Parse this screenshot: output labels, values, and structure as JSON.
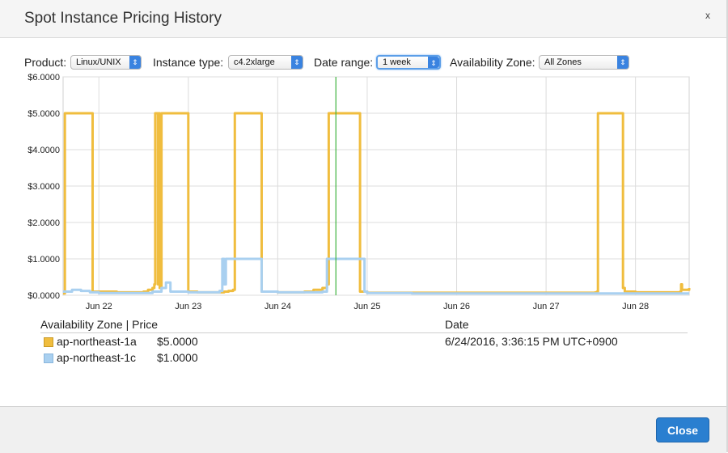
{
  "dialog": {
    "title": "Spot Instance Pricing History",
    "close_x": "x",
    "close_button": "Close"
  },
  "controls": {
    "product_label": "Product:",
    "product_value": "Linux/UNIX",
    "instance_type_label": "Instance type:",
    "instance_type_value": "c4.2xlarge",
    "date_range_label": "Date range:",
    "date_range_value": "1 week",
    "az_label": "Availability Zone:",
    "az_value": "All Zones",
    "arrow_glyph": "⇕"
  },
  "chart_data": {
    "type": "line",
    "x_ticks": [
      "Jun 22",
      "Jun 23",
      "Jun 24",
      "Jun 25",
      "Jun 26",
      "Jun 27",
      "Jun 28"
    ],
    "y_ticks": [
      "$0.0000",
      "$1.0000",
      "$2.0000",
      "$3.0000",
      "$4.0000",
      "$5.0000",
      "$6.0000"
    ],
    "ylim": [
      0,
      6
    ],
    "xlim": [
      21.6,
      28.6
    ],
    "grid": true,
    "cursor_x": 24.65,
    "cursor_color": "#3db33d",
    "series": [
      {
        "name": "ap-northeast-1a",
        "color": "#f0bd3e",
        "x": [
          21.6,
          21.62,
          21.63,
          21.9,
          21.91,
          21.93,
          22.2,
          22.4,
          22.5,
          22.55,
          22.6,
          22.62,
          22.63,
          22.64,
          22.66,
          22.67,
          22.68,
          22.7,
          22.71,
          22.72,
          22.99,
          23.0,
          23.1,
          23.3,
          23.4,
          23.45,
          23.5,
          23.52,
          23.8,
          23.82,
          24.0,
          24.1,
          24.3,
          24.4,
          24.5,
          24.55,
          24.57,
          24.9,
          24.92,
          25.0,
          25.5,
          26.0,
          26.5,
          27.0,
          27.4,
          27.55,
          27.57,
          27.58,
          27.85,
          27.86,
          27.88,
          28.0,
          28.2,
          28.4,
          28.5,
          28.51,
          28.52,
          28.6
        ],
        "y": [
          0.05,
          5.0,
          5.0,
          5.0,
          5.0,
          0.1,
          0.08,
          0.08,
          0.1,
          0.15,
          0.2,
          0.3,
          5.0,
          5.0,
          0.3,
          5.0,
          0.2,
          5.0,
          5.0,
          5.0,
          5.0,
          0.1,
          0.08,
          0.08,
          0.1,
          0.12,
          0.15,
          5.0,
          5.0,
          0.1,
          0.08,
          0.08,
          0.1,
          0.15,
          0.2,
          0.3,
          5.0,
          5.0,
          0.1,
          0.07,
          0.07,
          0.07,
          0.07,
          0.07,
          0.07,
          0.08,
          0.1,
          5.0,
          5.0,
          0.2,
          0.1,
          0.08,
          0.08,
          0.08,
          0.1,
          0.3,
          0.15,
          0.2
        ]
      },
      {
        "name": "ap-northeast-1c",
        "color": "#a9d0f0",
        "x": [
          21.6,
          21.7,
          21.8,
          21.9,
          22.0,
          22.2,
          22.4,
          22.6,
          22.7,
          22.75,
          22.8,
          23.0,
          23.2,
          23.35,
          23.38,
          23.4,
          23.42,
          23.44,
          23.8,
          23.82,
          24.0,
          24.2,
          24.5,
          24.55,
          24.95,
          24.97,
          25.0,
          25.5,
          26.0,
          26.5,
          27.0,
          27.5,
          28.0,
          28.5,
          28.6
        ],
        "y": [
          0.1,
          0.15,
          0.12,
          0.08,
          0.06,
          0.06,
          0.06,
          0.1,
          0.2,
          0.35,
          0.1,
          0.08,
          0.08,
          0.12,
          1.0,
          0.3,
          1.0,
          1.0,
          1.0,
          0.1,
          0.08,
          0.08,
          0.1,
          1.0,
          1.0,
          0.1,
          0.06,
          0.05,
          0.05,
          0.05,
          0.05,
          0.05,
          0.05,
          0.05,
          0.05
        ]
      }
    ]
  },
  "legend": {
    "col_zone_price": "Availability Zone | Price",
    "col_date": "Date",
    "date_value": "6/24/2016, 3:36:15 PM UTC+0900",
    "rows": [
      {
        "zone": "ap-northeast-1a",
        "price": "$5.0000",
        "color": "#f0bd3e"
      },
      {
        "zone": "ap-northeast-1c",
        "price": "$1.0000",
        "color": "#a9d0f0"
      }
    ]
  }
}
